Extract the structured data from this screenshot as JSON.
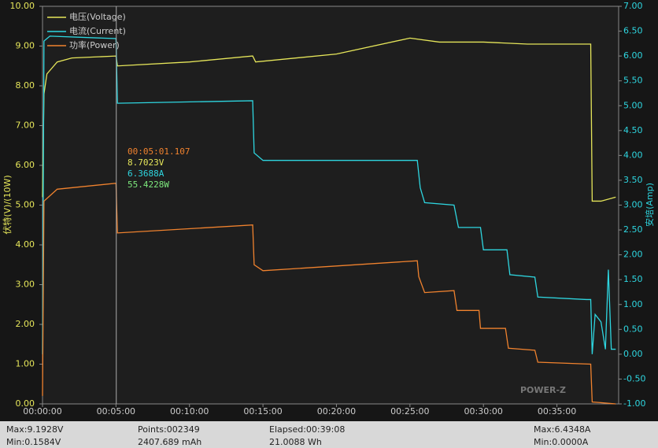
{
  "chart_data": {
    "type": "line",
    "series": [
      {
        "name": "电压(Voltage)",
        "color": "#e6e65a",
        "axis": "y",
        "x": [
          0,
          0.1,
          0.3,
          1,
          2,
          5,
          5.1,
          10,
          14.3,
          14.5,
          20,
          25,
          27,
          30,
          33,
          37.3,
          37.4,
          38,
          39
        ],
        "values": [
          5.2,
          7.8,
          8.3,
          8.6,
          8.7,
          8.75,
          8.5,
          8.6,
          8.75,
          8.6,
          8.8,
          9.2,
          9.1,
          9.1,
          9.05,
          9.05,
          5.1,
          5.1,
          5.2
        ]
      },
      {
        "name": "电流(Current)",
        "color": "#2ed6e0",
        "axis": "y2",
        "x": [
          0,
          0.1,
          0.5,
          5,
          5.1,
          14.3,
          14.4,
          15,
          25.5,
          25.7,
          26,
          28,
          28.3,
          29.8,
          30,
          31.6,
          31.8,
          33.5,
          33.7,
          37,
          37.3,
          37.4,
          37.6,
          38,
          38.3,
          38.5,
          38.7,
          39
        ],
        "values": [
          0,
          6.3,
          6.4,
          6.35,
          5.05,
          5.1,
          4.05,
          3.9,
          3.9,
          3.35,
          3.05,
          3.0,
          2.55,
          2.55,
          2.1,
          2.1,
          1.6,
          1.55,
          1.15,
          1.1,
          1.1,
          0,
          0.8,
          0.65,
          0.1,
          1.7,
          0.1,
          0.1
        ]
      },
      {
        "name": "功率(Power)",
        "color": "#f0822e",
        "axis": "y",
        "x": [
          0,
          0.1,
          1,
          5,
          5.1,
          14.3,
          14.4,
          15,
          25.5,
          25.6,
          26,
          28,
          28.2,
          29.7,
          29.8,
          31.5,
          31.7,
          33.5,
          33.7,
          37.3,
          37.4,
          39
        ],
        "values": [
          0.2,
          5.1,
          5.4,
          5.55,
          4.3,
          4.5,
          3.5,
          3.35,
          3.6,
          3.2,
          2.8,
          2.85,
          2.35,
          2.35,
          1.9,
          1.9,
          1.4,
          1.35,
          1.05,
          1.0,
          0.05,
          0
        ]
      }
    ],
    "xlim": [
      0,
      39.2
    ],
    "xticks": [
      {
        "value": 0,
        "label": "00:00:00"
      },
      {
        "value": 5,
        "label": "00:05:00"
      },
      {
        "value": 10,
        "label": "00:10:00"
      },
      {
        "value": 15,
        "label": "00:15:00"
      },
      {
        "value": 20,
        "label": "00:20:00"
      },
      {
        "value": 25,
        "label": "00:25:00"
      },
      {
        "value": 30,
        "label": "00:30:00"
      },
      {
        "value": 35,
        "label": "00:35:00"
      }
    ],
    "ylim": [
      0,
      10
    ],
    "yticks": [
      {
        "value": 0,
        "label": "0.00"
      },
      {
        "value": 1,
        "label": "1.00"
      },
      {
        "value": 2,
        "label": "2.00"
      },
      {
        "value": 3,
        "label": "3.00"
      },
      {
        "value": 4,
        "label": "4.00"
      },
      {
        "value": 5,
        "label": "5.00"
      },
      {
        "value": 6,
        "label": "6.00"
      },
      {
        "value": 7,
        "label": "7.00"
      },
      {
        "value": 8,
        "label": "8.00"
      },
      {
        "value": 9,
        "label": "9.00"
      },
      {
        "value": 10,
        "label": "10.00"
      }
    ],
    "y2lim": [
      -1,
      7
    ],
    "y2ticks": [
      {
        "value": -1,
        "label": "-1.00"
      },
      {
        "value": -0.5,
        "label": "-0.50"
      },
      {
        "value": 0,
        "label": "0.00"
      },
      {
        "value": 0.5,
        "label": "0.50"
      },
      {
        "value": 1,
        "label": "1.00"
      },
      {
        "value": 1.5,
        "label": "1.50"
      },
      {
        "value": 2,
        "label": "2.00"
      },
      {
        "value": 2.5,
        "label": "2.50"
      },
      {
        "value": 3,
        "label": "3.00"
      },
      {
        "value": 3.5,
        "label": "3.50"
      },
      {
        "value": 4,
        "label": "4.00"
      },
      {
        "value": 4.5,
        "label": "4.50"
      },
      {
        "value": 5,
        "label": "5.00"
      },
      {
        "value": 5.5,
        "label": "5.50"
      },
      {
        "value": 6,
        "label": "6.00"
      },
      {
        "value": 6.5,
        "label": "6.50"
      },
      {
        "value": 7,
        "label": "7.00"
      }
    ],
    "ylabel": "伏特(V)/(10W)",
    "y2label": "安培(Amp)",
    "cursor": {
      "x": 5.02,
      "labels": [
        "00:05:01.107",
        "8.7023V",
        "6.3688A",
        "55.4228W"
      ]
    },
    "watermark": "POWER-Z",
    "footer": [
      "Max:9.1928V",
      "Min:0.1584V",
      "Points:002349",
      "2407.689 mAh",
      "Elapsed:00:39:08",
      "21.0088 Wh",
      "Max:6.4348A",
      "Min:0.0000A"
    ]
  }
}
